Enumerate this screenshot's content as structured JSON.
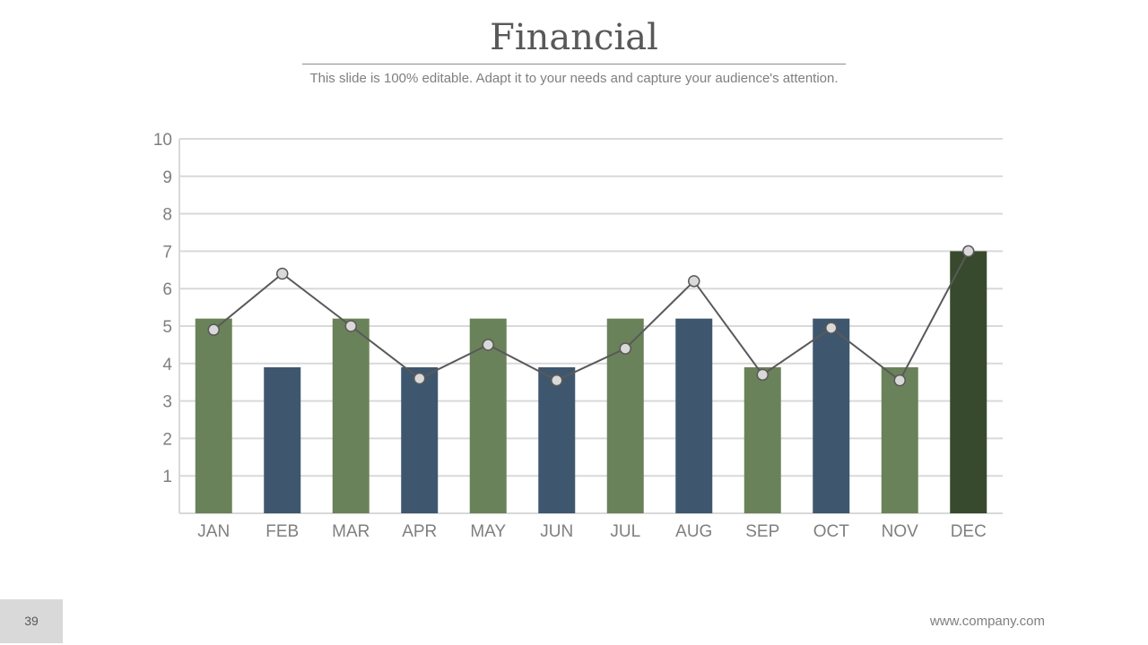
{
  "slide": {
    "title": "Financial",
    "subtitle": "This slide is 100% editable. Adapt it to your needs and capture your audience's attention.",
    "page_number": "39",
    "website": "www.company.com"
  },
  "colors": {
    "green": "#6a8259",
    "navy": "#3f576e",
    "dark_green": "#374a2e",
    "line": "#595959",
    "marker_fill": "#d9d9d9",
    "grid": "#d9d9d9"
  },
  "chart_data": {
    "type": "bar",
    "title": "",
    "xlabel": "",
    "ylabel": "",
    "ylim": [
      0,
      10
    ],
    "yticks": [
      1,
      2,
      3,
      4,
      5,
      6,
      7,
      8,
      9,
      10
    ],
    "grid": true,
    "categories": [
      "JAN",
      "FEB",
      "MAR",
      "APR",
      "MAY",
      "JUN",
      "JUL",
      "AUG",
      "SEP",
      "OCT",
      "NOV",
      "DEC"
    ],
    "series": [
      {
        "name": "Bars",
        "type": "bar",
        "values": [
          5.2,
          3.9,
          5.2,
          3.9,
          5.2,
          3.9,
          5.2,
          5.2,
          3.9,
          5.2,
          3.9,
          7.0
        ],
        "colors": [
          "green",
          "navy",
          "green",
          "navy",
          "green",
          "navy",
          "green",
          "navy",
          "green",
          "navy",
          "green",
          "dark_green"
        ]
      },
      {
        "name": "Line",
        "type": "line",
        "values": [
          4.9,
          6.4,
          5.0,
          3.6,
          4.5,
          3.55,
          4.4,
          6.2,
          3.7,
          4.95,
          3.55,
          7.0
        ]
      }
    ]
  }
}
